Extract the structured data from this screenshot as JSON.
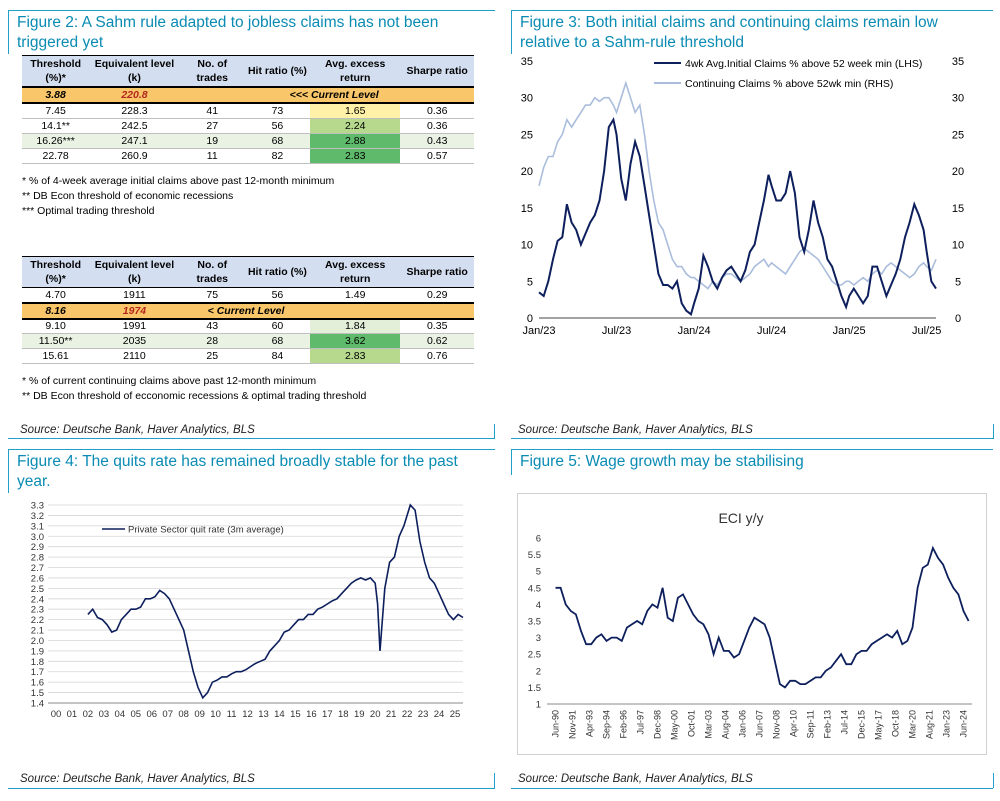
{
  "fig2": {
    "title": "Figure 2: A Sahm rule adapted to jobless claims has not been triggered yet",
    "table1": {
      "headers": [
        "Threshold (%)*",
        "Equivalent level (k)",
        "No. of trades",
        "Hit ratio (%)",
        "Avg. excess return",
        "Sharpe ratio"
      ],
      "current": {
        "threshold": "3.88",
        "level": "220.8",
        "label": "<<<  Current Level"
      },
      "rows": [
        [
          "7.45",
          "228.3",
          "41",
          "73",
          "1.65",
          "0.36"
        ],
        [
          "14.1**",
          "242.5",
          "27",
          "56",
          "2.24",
          "0.36"
        ],
        [
          "16.26***",
          "247.1",
          "19",
          "68",
          "2.88",
          "0.43"
        ],
        [
          "22.78",
          "260.9",
          "11",
          "82",
          "2.83",
          "0.57"
        ]
      ],
      "notes": [
        "* % of 4-week average initial claims above past 12-month minimum",
        "** DB Econ threshold of economic recessions",
        "*** Optimal trading threshold"
      ]
    },
    "table2": {
      "headers": [
        "Threshold (%)*",
        "Equivalent level (k)",
        "No. of trades",
        "Hit ratio (%)",
        "Avg. excess return",
        "Sharpe ratio"
      ],
      "row0": [
        "4.70",
        "1911",
        "75",
        "56",
        "1.49",
        "0.29"
      ],
      "current": {
        "threshold": "8.16",
        "level": "1974",
        "label": "<  Current Level"
      },
      "rows": [
        [
          "9.10",
          "1991",
          "43",
          "60",
          "1.84",
          "0.35"
        ],
        [
          "11.50**",
          "2035",
          "28",
          "68",
          "3.62",
          "0.62"
        ],
        [
          "15.61",
          "2110",
          "25",
          "84",
          "2.83",
          "0.76"
        ]
      ],
      "notes": [
        "* % of current continuing claims above past 12-month minimum",
        "** DB Econ threshold of ecconomic recessions & optimal trading threshold"
      ]
    },
    "source": "Source: Deutsche Bank, Haver Analytics, BLS"
  },
  "fig3": {
    "title": "Figure 3: Both initial claims and continuing claims remain low relative to a Sahm-rule threshold",
    "source": "Source: Deutsche Bank, Haver Analytics, BLS"
  },
  "fig4": {
    "title": "Figure 4: The quits rate has remained broadly stable for the past year.",
    "source": "Source: Deutsche Bank, Haver Analytics, BLS"
  },
  "fig5": {
    "title": "Figure 5: Wage growth may be stabilising",
    "source": "Source: Deutsche Bank, Haver Analytics, BLS"
  },
  "colors": {
    "accent": "#1fa0c8",
    "navy": "#0d1f5c",
    "light_blue": "#aabddc",
    "current_row": "#f9c76a",
    "header": "#d3dff1"
  },
  "chart_data": [
    {
      "id": "fig3",
      "type": "line",
      "x_ticks": [
        "Jan/23",
        "Jul/23",
        "Jan/24",
        "Jul/24",
        "Jan/25",
        "Jul/25"
      ],
      "ylim_left": [
        0,
        35
      ],
      "ylim_right": [
        0,
        35
      ],
      "yticks_left": [
        "0",
        "5",
        "10",
        "15",
        "20",
        "25",
        "30",
        "35"
      ],
      "yticks_right": [
        "0",
        "5",
        "10",
        "15",
        "20",
        "25",
        "30",
        "35"
      ],
      "grid": false,
      "legend_position": "top-right",
      "series": [
        {
          "name": "4wk Avg.Initial Claims % above 52 week min (LHS)",
          "axis": "left",
          "color": "#0d1f5c",
          "x": [
            0,
            0.06,
            0.12,
            0.18,
            0.24,
            0.3,
            0.36,
            0.42,
            0.48,
            0.54,
            0.6,
            0.66,
            0.72,
            0.78,
            0.84,
            0.9,
            0.96,
            1.0,
            1.06,
            1.12,
            1.18,
            1.24,
            1.3,
            1.36,
            1.42,
            1.48,
            1.54,
            1.6,
            1.66,
            1.72,
            1.78,
            1.84,
            1.9,
            1.96,
            2.0,
            2.06,
            2.12,
            2.18,
            2.24,
            2.3,
            2.36,
            2.42,
            2.48,
            2.54,
            2.6,
            2.66,
            2.72,
            2.78,
            2.84,
            2.9,
            2.96,
            3.0,
            3.06,
            3.12,
            3.18,
            3.24,
            3.3,
            3.36,
            3.42,
            3.48,
            3.54,
            3.6,
            3.66,
            3.72,
            3.78,
            3.84,
            3.9,
            3.96,
            4.0,
            4.06,
            4.12,
            4.18,
            4.24,
            4.3,
            4.36,
            4.42,
            4.48,
            4.54,
            4.6,
            4.66,
            4.72,
            4.78,
            4.84,
            4.9,
            4.96,
            5.0,
            5.06,
            5.12
          ],
          "values": [
            3.5,
            3,
            5,
            8,
            10.5,
            11,
            15.5,
            13,
            12,
            10,
            11.5,
            13,
            14,
            16,
            20,
            26,
            27,
            25,
            19,
            16,
            21,
            24,
            22,
            18,
            14,
            10,
            6,
            4.5,
            4.5,
            4,
            5,
            2,
            1,
            0.5,
            2,
            4,
            8.5,
            7,
            5,
            4,
            5.5,
            6.5,
            7,
            6,
            5,
            6.5,
            9,
            10,
            13,
            16,
            19.5,
            18,
            16,
            16,
            17,
            20,
            17,
            11,
            9,
            12,
            16,
            13,
            11,
            8,
            7,
            5,
            3,
            1.5,
            3,
            4,
            3,
            2,
            3,
            7,
            7,
            5,
            3,
            4.5,
            6,
            8,
            11,
            13,
            15.5,
            14,
            12,
            9,
            5,
            4
          ]
        },
        {
          "name": "Continuing Claims % above 52wk min (RHS)",
          "axis": "right",
          "color": "#aabddc",
          "x": [
            0,
            0.06,
            0.12,
            0.18,
            0.24,
            0.3,
            0.36,
            0.42,
            0.48,
            0.54,
            0.6,
            0.66,
            0.72,
            0.78,
            0.84,
            0.9,
            0.96,
            1.0,
            1.06,
            1.12,
            1.18,
            1.24,
            1.3,
            1.36,
            1.42,
            1.48,
            1.54,
            1.6,
            1.66,
            1.72,
            1.78,
            1.84,
            1.9,
            1.96,
            2.0,
            2.06,
            2.12,
            2.18,
            2.24,
            2.3,
            2.36,
            2.42,
            2.48,
            2.54,
            2.6,
            2.66,
            2.72,
            2.78,
            2.84,
            2.9,
            2.96,
            3.0,
            3.06,
            3.12,
            3.18,
            3.24,
            3.3,
            3.36,
            3.42,
            3.48,
            3.54,
            3.6,
            3.66,
            3.72,
            3.78,
            3.84,
            3.9,
            3.96,
            4.0,
            4.06,
            4.12,
            4.18,
            4.24,
            4.3,
            4.36,
            4.42,
            4.48,
            4.54,
            4.6,
            4.66,
            4.72,
            4.78,
            4.84,
            4.9,
            4.96,
            5.0,
            5.06,
            5.12
          ],
          "values": [
            18,
            20.5,
            22,
            22,
            24,
            25,
            27,
            26,
            27,
            28,
            29,
            29,
            30,
            29.5,
            30,
            30,
            29,
            28,
            30,
            32,
            30,
            28,
            29,
            25,
            20,
            16,
            13,
            12,
            10,
            8,
            7,
            7,
            6,
            5.5,
            5.5,
            5,
            4.5,
            4,
            5,
            4.5,
            5.5,
            6,
            6,
            5.5,
            5,
            5.5,
            6,
            7,
            7.5,
            8,
            7,
            7.5,
            7,
            6.5,
            6,
            7,
            8,
            9,
            9.5,
            9,
            8.5,
            8,
            7,
            6,
            5,
            4.5,
            4.5,
            5,
            5,
            4.5,
            5,
            5.5,
            5,
            6,
            6.5,
            6,
            7,
            7.5,
            7,
            6.5,
            6,
            5.5,
            6,
            7,
            7.5,
            7,
            6.5,
            8
          ]
        }
      ]
    },
    {
      "id": "fig4",
      "type": "line",
      "x_ticks": [
        "00",
        "01",
        "02",
        "03",
        "04",
        "05",
        "06",
        "07",
        "08",
        "09",
        "10",
        "11",
        "12",
        "13",
        "14",
        "15",
        "16",
        "17",
        "18",
        "19",
        "20",
        "21",
        "22",
        "23",
        "24",
        "25"
      ],
      "ylim": [
        1.4,
        3.3
      ],
      "yticks": [
        "1.4",
        "1.5",
        "1.6",
        "1.7",
        "1.8",
        "1.9",
        "2.0",
        "2.1",
        "2.2",
        "2.3",
        "2.4",
        "2.5",
        "2.6",
        "2.7",
        "2.8",
        "2.9",
        "3.0",
        "3.1",
        "3.2",
        "3.3"
      ],
      "grid": true,
      "legend_position": "top-left",
      "series": [
        {
          "name": "Private Sector quit rate (3m average)",
          "color": "#0d1f5c",
          "x": [
            2.0,
            2.3,
            2.6,
            2.9,
            3.2,
            3.5,
            3.8,
            4.1,
            4.4,
            4.7,
            5.0,
            5.3,
            5.6,
            5.9,
            6.2,
            6.5,
            6.8,
            7.1,
            7.4,
            7.7,
            8.0,
            8.3,
            8.6,
            8.9,
            9.2,
            9.5,
            9.8,
            10.1,
            10.4,
            10.7,
            11.0,
            11.3,
            11.6,
            11.9,
            12.2,
            12.5,
            12.8,
            13.1,
            13.4,
            13.7,
            14.0,
            14.3,
            14.6,
            14.9,
            15.2,
            15.5,
            15.8,
            16.1,
            16.4,
            16.7,
            17.0,
            17.3,
            17.6,
            17.9,
            18.2,
            18.5,
            18.8,
            19.1,
            19.4,
            19.7,
            20.0,
            20.15,
            20.3,
            20.45,
            20.6,
            20.9,
            21.2,
            21.5,
            21.8,
            22.0,
            22.2,
            22.5,
            22.8,
            23.1,
            23.4,
            23.7,
            24.0,
            24.3,
            24.6,
            24.9,
            25.2,
            25.5
          ],
          "values": [
            2.25,
            2.3,
            2.22,
            2.2,
            2.15,
            2.08,
            2.1,
            2.2,
            2.25,
            2.3,
            2.3,
            2.32,
            2.4,
            2.4,
            2.42,
            2.48,
            2.45,
            2.4,
            2.3,
            2.2,
            2.1,
            1.9,
            1.7,
            1.55,
            1.45,
            1.5,
            1.6,
            1.62,
            1.65,
            1.65,
            1.68,
            1.7,
            1.7,
            1.72,
            1.75,
            1.78,
            1.8,
            1.82,
            1.9,
            1.95,
            2.0,
            2.08,
            2.1,
            2.15,
            2.2,
            2.2,
            2.25,
            2.25,
            2.3,
            2.32,
            2.35,
            2.38,
            2.4,
            2.45,
            2.5,
            2.55,
            2.58,
            2.6,
            2.58,
            2.6,
            2.55,
            2.35,
            1.9,
            2.2,
            2.5,
            2.75,
            2.8,
            3.0,
            3.1,
            3.2,
            3.3,
            3.25,
            2.95,
            2.75,
            2.6,
            2.55,
            2.45,
            2.35,
            2.25,
            2.2,
            2.25,
            2.22
          ]
        }
      ]
    },
    {
      "id": "fig5",
      "type": "line",
      "title": "ECI y/y",
      "x_ticks": [
        "Jun-90",
        "Nov-91",
        "Apr-93",
        "Sep-94",
        "Feb-96",
        "Jul-97",
        "Dec-98",
        "May-00",
        "Oct-01",
        "Mar-03",
        "Aug-04",
        "Jan-06",
        "Jun-07",
        "Nov-08",
        "Apr-10",
        "Sep-11",
        "Feb-13",
        "Jul-14",
        "Dec-15",
        "May-17",
        "Oct-18",
        "Mar-20",
        "Aug-21",
        "Jan-23",
        "Jun-24"
      ],
      "ylim": [
        1,
        6
      ],
      "yticks": [
        "1",
        "1.5",
        "2",
        "2.5",
        "3",
        "3.5",
        "4",
        "4.5",
        "5",
        "5.5",
        "6"
      ],
      "grid": false,
      "series": [
        {
          "name": "",
          "color": "#0d1f5c",
          "x": [
            0,
            0.3,
            0.6,
            0.9,
            1.2,
            1.5,
            1.8,
            2.1,
            2.4,
            2.7,
            3.0,
            3.3,
            3.6,
            3.9,
            4.2,
            4.5,
            4.8,
            5.1,
            5.4,
            5.7,
            6.0,
            6.3,
            6.6,
            6.9,
            7.2,
            7.5,
            7.8,
            8.1,
            8.4,
            8.7,
            9.0,
            9.3,
            9.6,
            9.9,
            10.2,
            10.5,
            10.8,
            11.1,
            11.4,
            11.7,
            12.0,
            12.3,
            12.6,
            12.9,
            13.2,
            13.5,
            13.8,
            14.1,
            14.4,
            14.7,
            15.0,
            15.3,
            15.6,
            15.9,
            16.2,
            16.5,
            16.8,
            17.1,
            17.4,
            17.7,
            18.0,
            18.3,
            18.6,
            18.9,
            19.2,
            19.5,
            19.8,
            20.1,
            20.4,
            20.7,
            21.0,
            21.3,
            21.6,
            21.9,
            22.2,
            22.5,
            22.8,
            23.1,
            23.4,
            23.7,
            24.0,
            24.3
          ],
          "values": [
            4.5,
            4.5,
            4.0,
            3.8,
            3.7,
            3.2,
            2.8,
            2.8,
            3.0,
            3.1,
            2.9,
            3.0,
            3.0,
            2.9,
            3.3,
            3.4,
            3.5,
            3.4,
            3.8,
            4.0,
            3.9,
            4.5,
            3.6,
            3.5,
            4.2,
            4.3,
            4.0,
            3.7,
            3.5,
            3.4,
            3.1,
            2.5,
            3.0,
            2.6,
            2.6,
            2.4,
            2.5,
            2.9,
            3.3,
            3.6,
            3.5,
            3.4,
            3.0,
            2.3,
            1.6,
            1.5,
            1.7,
            1.7,
            1.6,
            1.6,
            1.7,
            1.8,
            1.8,
            2.0,
            2.1,
            2.3,
            2.5,
            2.2,
            2.2,
            2.5,
            2.6,
            2.6,
            2.8,
            2.9,
            3.0,
            3.1,
            3.0,
            3.2,
            2.8,
            2.9,
            3.3,
            4.5,
            5.1,
            5.2,
            5.7,
            5.4,
            5.2,
            4.8,
            4.5,
            4.3,
            3.8,
            3.5
          ]
        }
      ]
    }
  ]
}
